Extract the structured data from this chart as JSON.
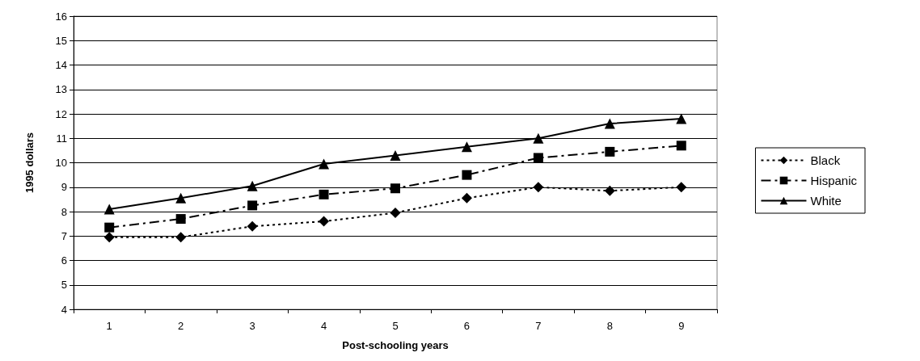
{
  "chart_data": {
    "type": "line",
    "xlabel": "Post-schooling years",
    "ylabel": "1995 dollars",
    "categories": [
      "1",
      "2",
      "3",
      "4",
      "5",
      "6",
      "7",
      "8",
      "9"
    ],
    "series": [
      {
        "name": "Black",
        "color": "#000000",
        "marker": "diamond",
        "line_style": "dotted",
        "values": [
          6.95,
          6.95,
          7.4,
          7.6,
          7.95,
          8.55,
          9.0,
          8.85,
          9.0
        ]
      },
      {
        "name": "Hispanic",
        "color": "#000000",
        "marker": "square",
        "line_style": "dashed",
        "values": [
          7.35,
          7.7,
          8.25,
          8.7,
          8.95,
          9.5,
          10.2,
          10.45,
          10.7
        ]
      },
      {
        "name": "White",
        "color": "#000000",
        "marker": "triangle",
        "line_style": "solid",
        "values": [
          8.1,
          8.55,
          9.05,
          9.95,
          10.3,
          10.65,
          11.0,
          11.6,
          11.8
        ]
      }
    ],
    "ylim": [
      4,
      16
    ],
    "yticks": [
      4,
      5,
      6,
      7,
      8,
      9,
      10,
      11,
      12,
      13,
      14,
      15,
      16
    ],
    "grid": "y",
    "legend": "right"
  }
}
